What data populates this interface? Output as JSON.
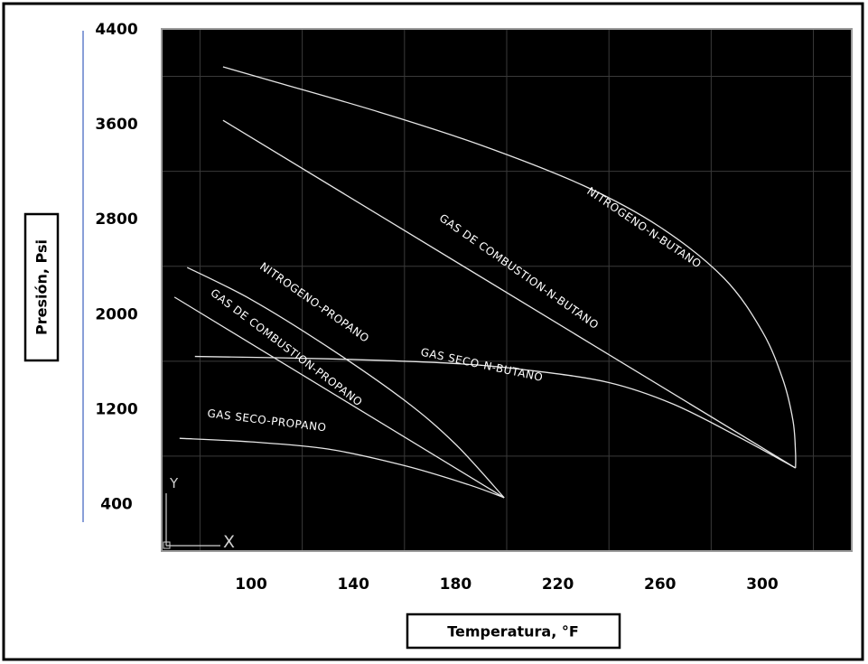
{
  "chart_data": {
    "type": "line",
    "xlabel": "Temperatura, °F",
    "ylabel": "Presión, Psi",
    "x_ticks": [
      100,
      140,
      180,
      220,
      260,
      300
    ],
    "y_ticks": [
      400,
      1200,
      2000,
      2800,
      3600,
      4400
    ],
    "xlim": [
      65,
      335
    ],
    "ylim": [
      0,
      4400
    ],
    "grid": true,
    "background": "#000000",
    "line_color": "#e6e6e6",
    "corner_marks": {
      "y": "Y",
      "x": "X"
    },
    "series": [
      {
        "name": "NITROGENO-N-BUTANO",
        "points": [
          [
            89,
            4080
          ],
          [
            110,
            3950
          ],
          [
            150,
            3700
          ],
          [
            190,
            3420
          ],
          [
            230,
            3080
          ],
          [
            260,
            2730
          ],
          [
            285,
            2300
          ],
          [
            300,
            1850
          ],
          [
            308,
            1450
          ],
          [
            312,
            1100
          ],
          [
            313,
            830
          ],
          [
            313,
            700
          ]
        ]
      },
      {
        "name": "GAS DE COMBUSTION-N-BUTANO",
        "points": [
          [
            89,
            3630
          ],
          [
            313,
            700
          ]
        ]
      },
      {
        "name": "GAS SECO-N-BUTANO",
        "points": [
          [
            78,
            1640
          ],
          [
            130,
            1620
          ],
          [
            180,
            1580
          ],
          [
            210,
            1520
          ],
          [
            240,
            1420
          ],
          [
            265,
            1240
          ],
          [
            290,
            970
          ],
          [
            313,
            700
          ]
        ]
      },
      {
        "name": "NITROGENO-PROPANO",
        "points": [
          [
            75,
            2390
          ],
          [
            100,
            2120
          ],
          [
            130,
            1720
          ],
          [
            160,
            1270
          ],
          [
            180,
            900
          ],
          [
            199,
            450
          ]
        ]
      },
      {
        "name": "GAS DE COMBUSTION-PROPANO",
        "points": [
          [
            70,
            2140
          ],
          [
            199,
            450
          ]
        ]
      },
      {
        "name": "GAS SECO-PROPANO",
        "points": [
          [
            72,
            950
          ],
          [
            100,
            920
          ],
          [
            130,
            860
          ],
          [
            160,
            720
          ],
          [
            185,
            560
          ],
          [
            199,
            450
          ]
        ]
      }
    ],
    "labels": [
      {
        "text": "NITROGENO-N-BUTANO",
        "at": [
          253,
          2700
        ],
        "angle": 34
      },
      {
        "text": "GAS DE COMBUSTION-N-BUTANO",
        "at": [
          204,
          2330
        ],
        "angle": 35
      },
      {
        "text": "GAS SECO-N-BUTANO",
        "at": [
          190,
          1540
        ],
        "angle": 12
      },
      {
        "text": "NITROGENO-PROPANO",
        "at": [
          124,
          2070
        ],
        "angle": 35
      },
      {
        "text": "GAS DE COMBUSTION-PROPANO",
        "at": [
          113,
          1690
        ],
        "angle": 37
      },
      {
        "text": "GAS SECO-PROPANO",
        "at": [
          106,
          1070
        ],
        "angle": 7
      }
    ]
  }
}
